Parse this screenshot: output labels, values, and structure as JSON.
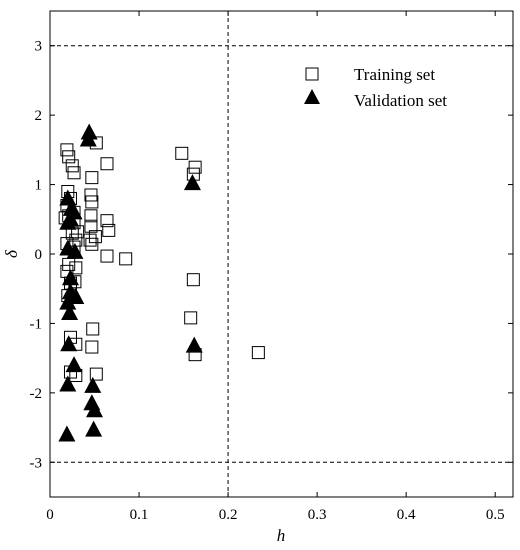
{
  "chart_data": {
    "type": "scatter",
    "title": "",
    "xlabel": "h",
    "ylabel": "δ",
    "xlim": [
      0,
      0.52
    ],
    "ylim": [
      -3.5,
      3.5
    ],
    "x_ticks": [
      0,
      0.1,
      0.2,
      0.3,
      0.4,
      0.5
    ],
    "x_tick_labels": [
      "0",
      "0.1",
      "0.2",
      "0.3",
      "0.4",
      "0.5"
    ],
    "y_ticks": [
      -3,
      -2,
      -1,
      0,
      1,
      2,
      3
    ],
    "y_tick_labels": [
      "-3",
      "-2",
      "-1",
      "0",
      "1",
      "2",
      "3"
    ],
    "grid": false,
    "legend_position": "top-right",
    "reference_lines": [
      {
        "orientation": "horizontal",
        "value": 3,
        "style": "dashed"
      },
      {
        "orientation": "horizontal",
        "value": -3,
        "style": "dashed"
      },
      {
        "orientation": "vertical",
        "value": 0.2,
        "style": "dashed"
      }
    ],
    "series": [
      {
        "name": "Training set",
        "marker": "open-square",
        "color": "#000000",
        "points": [
          [
            0.019,
            1.5
          ],
          [
            0.021,
            1.4
          ],
          [
            0.052,
            1.6
          ],
          [
            0.025,
            1.27
          ],
          [
            0.027,
            1.17
          ],
          [
            0.064,
            1.3
          ],
          [
            0.047,
            1.1
          ],
          [
            0.02,
            0.9
          ],
          [
            0.046,
            0.85
          ],
          [
            0.023,
            0.8
          ],
          [
            0.019,
            0.7
          ],
          [
            0.047,
            0.75
          ],
          [
            0.027,
            0.6
          ],
          [
            0.017,
            0.52
          ],
          [
            0.021,
            0.55
          ],
          [
            0.046,
            0.55
          ],
          [
            0.064,
            0.48
          ],
          [
            0.027,
            0.45
          ],
          [
            0.046,
            0.4
          ],
          [
            0.066,
            0.34
          ],
          [
            0.025,
            0.3
          ],
          [
            0.031,
            0.32
          ],
          [
            0.045,
            0.2
          ],
          [
            0.051,
            0.25
          ],
          [
            0.029,
            0.2
          ],
          [
            0.019,
            0.15
          ],
          [
            0.027,
            0.1
          ],
          [
            0.047,
            0.14
          ],
          [
            0.064,
            -0.03
          ],
          [
            0.085,
            -0.07
          ],
          [
            0.021,
            -0.15
          ],
          [
            0.019,
            -0.25
          ],
          [
            0.029,
            -0.2
          ],
          [
            0.023,
            -0.42
          ],
          [
            0.028,
            -0.4
          ],
          [
            0.02,
            -0.6
          ],
          [
            0.048,
            -1.08
          ],
          [
            0.023,
            -1.2
          ],
          [
            0.029,
            -1.3
          ],
          [
            0.047,
            -1.34
          ],
          [
            0.023,
            -1.7
          ],
          [
            0.029,
            -1.75
          ],
          [
            0.052,
            -1.73
          ],
          [
            0.148,
            1.45
          ],
          [
            0.163,
            1.25
          ],
          [
            0.161,
            1.15
          ],
          [
            0.161,
            -0.37
          ],
          [
            0.158,
            -0.92
          ],
          [
            0.163,
            -1.45
          ],
          [
            0.234,
            -1.42
          ]
        ]
      },
      {
        "name": "Validation set",
        "marker": "filled-triangle",
        "color": "#000000",
        "points": [
          [
            0.044,
            1.75
          ],
          [
            0.043,
            1.65
          ],
          [
            0.02,
            0.8
          ],
          [
            0.024,
            0.65
          ],
          [
            0.027,
            0.6
          ],
          [
            0.023,
            0.5
          ],
          [
            0.02,
            0.45
          ],
          [
            0.02,
            0.08
          ],
          [
            0.028,
            0.03
          ],
          [
            0.023,
            -0.35
          ],
          [
            0.023,
            -0.55
          ],
          [
            0.029,
            -0.62
          ],
          [
            0.02,
            -0.7
          ],
          [
            0.022,
            -0.85
          ],
          [
            0.021,
            -1.3
          ],
          [
            0.027,
            -1.6
          ],
          [
            0.02,
            -1.88
          ],
          [
            0.048,
            -1.9
          ],
          [
            0.047,
            -2.15
          ],
          [
            0.05,
            -2.25
          ],
          [
            0.019,
            -2.6
          ],
          [
            0.049,
            -2.53
          ],
          [
            0.16,
            1.02
          ],
          [
            0.162,
            -1.32
          ]
        ]
      }
    ]
  }
}
